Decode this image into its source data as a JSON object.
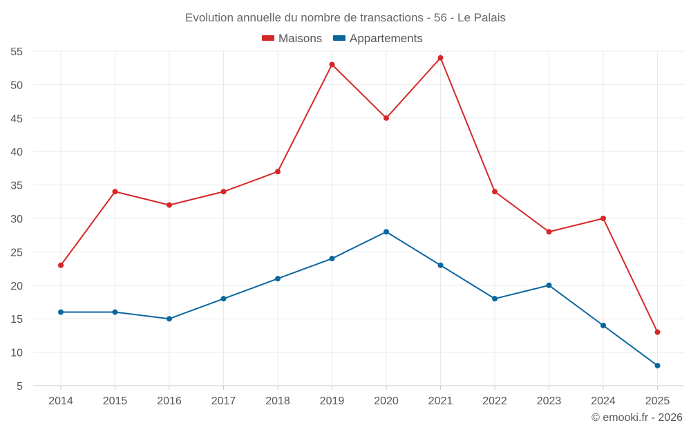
{
  "chart_data": {
    "type": "line",
    "title": "Evolution annuelle du nombre de transactions - 56 - Le Palais",
    "categories": [
      "2014",
      "2015",
      "2016",
      "2017",
      "2018",
      "2019",
      "2020",
      "2021",
      "2022",
      "2023",
      "2024",
      "2025"
    ],
    "series": [
      {
        "name": "Maisons",
        "color": "#d62728",
        "values": [
          23,
          34,
          32,
          34,
          37,
          53,
          45,
          54,
          34,
          28,
          30,
          13
        ]
      },
      {
        "name": "Appartements",
        "color": "#0b66a0",
        "values": [
          16,
          16,
          15,
          18,
          21,
          24,
          28,
          23,
          18,
          20,
          14,
          8
        ]
      }
    ],
    "yticks": [
      5,
      10,
      15,
      20,
      25,
      30,
      35,
      40,
      45,
      50,
      55
    ],
    "ylim": [
      5,
      55
    ],
    "xlabel": "",
    "ylabel": "",
    "grid": true,
    "legend": "top-center"
  },
  "credit": "© emooki.fr - 2026"
}
